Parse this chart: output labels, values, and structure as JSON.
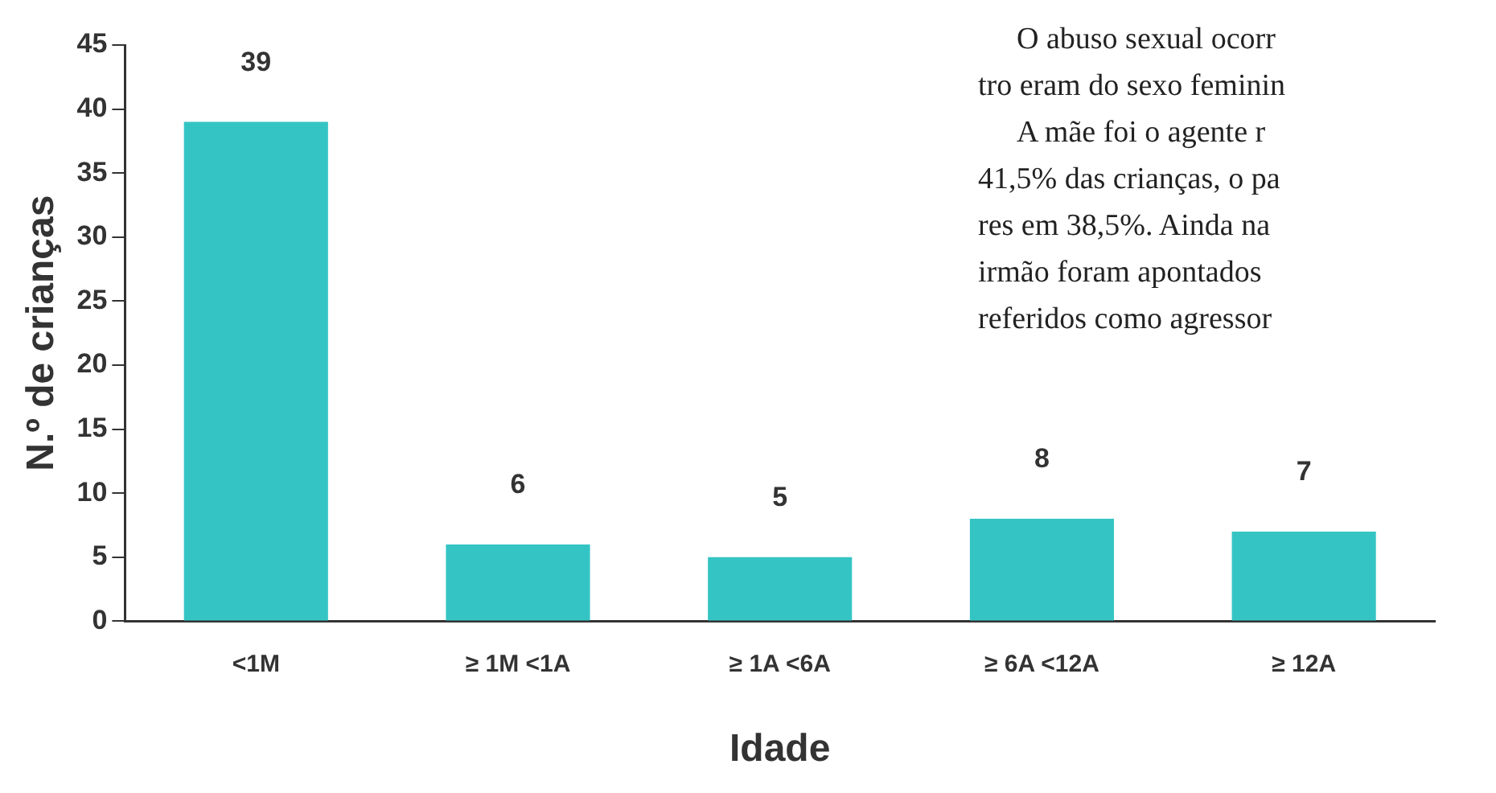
{
  "chart_data": {
    "type": "bar",
    "xlabel": "Idade",
    "ylabel": "N.º de crianças",
    "categories": [
      "<1M",
      "≥ 1M <1A",
      "≥ 1A <6A",
      "≥ 6A <12A",
      "≥ 12A"
    ],
    "values": [
      39,
      6,
      5,
      8,
      7
    ],
    "color": "#35c4c4",
    "data_labels": true,
    "ylim": [
      0,
      45
    ],
    "yticks": [
      0,
      5,
      10,
      15,
      20,
      25,
      30,
      35,
      40,
      45
    ],
    "grid": false,
    "legend": false,
    "annotations": [
      "O abuso sexual ocorr",
      "tro eram do sexo feminin",
      "A mãe foi o agente r",
      "41,5% das crianças, o pa",
      "res em 38,5%. Ainda na",
      "irmão foram apontados",
      "referidos como agressor"
    ]
  }
}
